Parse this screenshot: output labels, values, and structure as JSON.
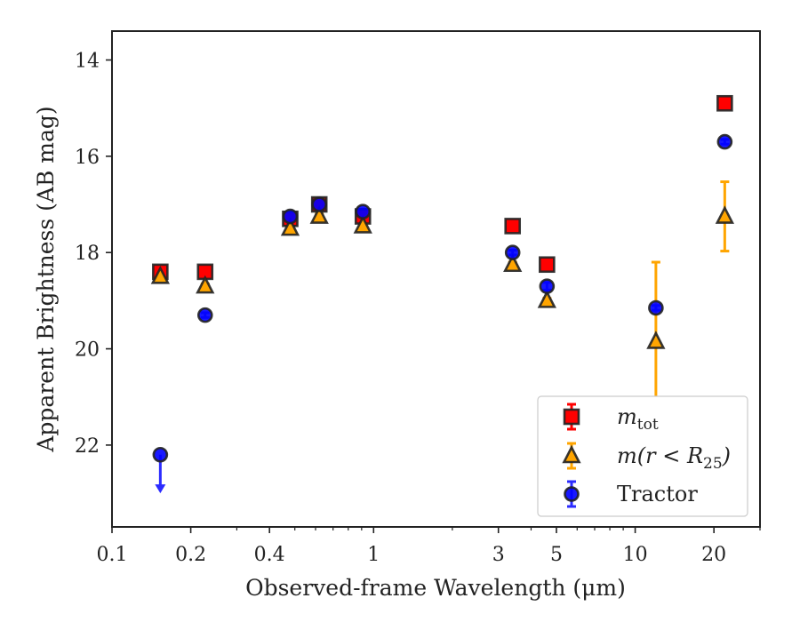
{
  "chart_data": {
    "type": "scatter",
    "xlabel": "Observed-frame Wavelength (μm)",
    "ylabel": "Apparent Brightness (AB mag)",
    "x_scale": "log",
    "y_inverted": true,
    "xlim": [
      0.1,
      30
    ],
    "ylim": [
      23.7,
      13.4
    ],
    "x_ticks": [
      {
        "value": 0.1,
        "label": "0.1"
      },
      {
        "value": 0.2,
        "label": "0.2"
      },
      {
        "value": 0.4,
        "label": "0.4"
      },
      {
        "value": 1,
        "label": "1"
      },
      {
        "value": 3,
        "label": "3"
      },
      {
        "value": 5,
        "label": "5"
      },
      {
        "value": 10,
        "label": "10"
      },
      {
        "value": 20,
        "label": "20"
      }
    ],
    "y_ticks": [
      {
        "value": 14,
        "label": "14"
      },
      {
        "value": 16,
        "label": "16"
      },
      {
        "value": 18,
        "label": "18"
      },
      {
        "value": 20,
        "label": "20"
      },
      {
        "value": 22,
        "label": "22"
      }
    ],
    "legend_position": "lower-right",
    "series": [
      {
        "legend_main": "m",
        "legend_sub": "tot",
        "marker": "square",
        "color": "#ff0000",
        "error_color": "#ff0000",
        "points": [
          {
            "x": 0.153,
            "y": 18.4,
            "err": 0.05
          },
          {
            "x": 0.227,
            "y": 18.4,
            "err": 0.05
          },
          {
            "x": 0.48,
            "y": 17.3,
            "err": 0.1
          },
          {
            "x": 0.62,
            "y": 17.0,
            "err": 0.05
          },
          {
            "x": 0.91,
            "y": 17.25,
            "err": 0.15
          },
          {
            "x": 3.4,
            "y": 17.45,
            "err": 0.05
          },
          {
            "x": 4.6,
            "y": 18.25,
            "err": 0.05
          },
          {
            "x": 22,
            "y": 14.9,
            "err": 0.05
          }
        ]
      },
      {
        "legend_main": "m(r < R",
        "legend_sub": "25",
        "legend_end": ")",
        "marker": "triangle",
        "color": "#ffa500",
        "error_color": "#ffa500",
        "points": [
          {
            "x": 0.153,
            "y": 18.5,
            "err": 0.05
          },
          {
            "x": 0.227,
            "y": 18.7,
            "err": 0.05
          },
          {
            "x": 0.48,
            "y": 17.5,
            "err": 0.05
          },
          {
            "x": 0.62,
            "y": 17.25,
            "err": 0.05
          },
          {
            "x": 0.91,
            "y": 17.45,
            "err": 0.05
          },
          {
            "x": 3.4,
            "y": 18.25,
            "err": 0.05
          },
          {
            "x": 4.6,
            "y": 19.0,
            "err": 0.05
          },
          {
            "x": 12,
            "y": 19.85,
            "err": 1.65
          },
          {
            "x": 22,
            "y": 17.25,
            "err": 0.72
          }
        ]
      },
      {
        "legend_main": "Tractor",
        "marker": "circle",
        "color": "#0000ff",
        "error_color": "#2b2bff",
        "points": [
          {
            "x": 0.153,
            "y": 22.2,
            "err": 0,
            "upper_limit": true,
            "arrow_to": 23.0
          },
          {
            "x": 0.227,
            "y": 19.3,
            "err": 0.05
          },
          {
            "x": 0.48,
            "y": 17.25,
            "err": 0.05
          },
          {
            "x": 0.62,
            "y": 17.0,
            "err": 0.05
          },
          {
            "x": 0.91,
            "y": 17.15,
            "err": 0.05
          },
          {
            "x": 3.4,
            "y": 18.0,
            "err": 0.05
          },
          {
            "x": 4.6,
            "y": 18.7,
            "err": 0.08
          },
          {
            "x": 12,
            "y": 19.15,
            "err": 0.05
          },
          {
            "x": 22,
            "y": 15.7,
            "err": 0.05
          }
        ]
      }
    ]
  }
}
